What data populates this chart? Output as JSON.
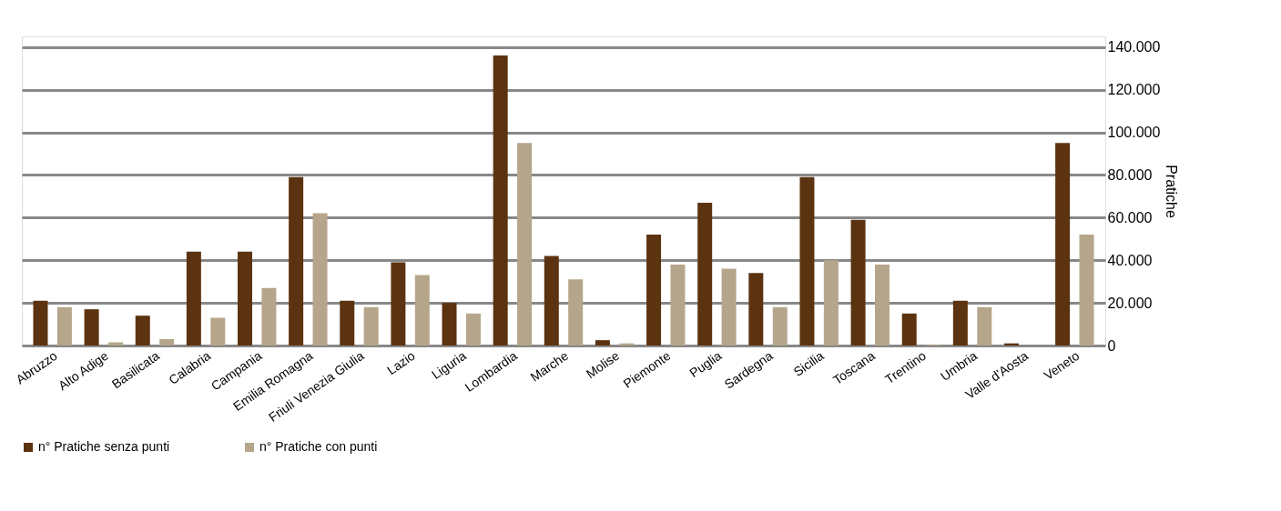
{
  "chart_data": {
    "type": "bar",
    "ylabel": "Pratiche",
    "categories": [
      "Abruzzo",
      "Alto Adige",
      "Basilicata",
      "Calabria",
      "Campania",
      "Emilia Romagna",
      "Friuli Venezia Giulia",
      "Lazio",
      "Liguria",
      "Lombardia",
      "Marche",
      "Molise",
      "Piemonte",
      "Puglia",
      "Sardegna",
      "Sicilia",
      "Toscana",
      "Trentino",
      "Umbria",
      "Valle d'Aosta",
      "Veneto"
    ],
    "series": [
      {
        "name": "n° Pratiche senza punti",
        "color": "#5c3310",
        "values": [
          21000,
          17000,
          14000,
          44000,
          44000,
          79000,
          21000,
          39000,
          20000,
          136000,
          42000,
          2500,
          52000,
          67000,
          34000,
          79000,
          59000,
          15000,
          21000,
          1000,
          95000
        ]
      },
      {
        "name": "n° Pratiche con punti",
        "color": "#b5a58a",
        "values": [
          18000,
          1500,
          3000,
          13000,
          27000,
          62000,
          18000,
          33000,
          15000,
          95000,
          31000,
          1000,
          38000,
          36000,
          18000,
          40000,
          38000,
          500,
          18000,
          null,
          52000
        ]
      }
    ],
    "ylim": [
      0,
      145000
    ],
    "yticks": [
      {
        "value": 0,
        "label": "0"
      },
      {
        "value": 20000,
        "label": "20.000"
      },
      {
        "value": 40000,
        "label": "40.000"
      },
      {
        "value": 60000,
        "label": "60.000"
      },
      {
        "value": 80000,
        "label": "80.000"
      },
      {
        "value": 100000,
        "label": "100.000"
      },
      {
        "value": 120000,
        "label": "120.000"
      },
      {
        "value": 140000,
        "label": "140.000"
      }
    ],
    "grid": "y",
    "legend": "bottom"
  }
}
